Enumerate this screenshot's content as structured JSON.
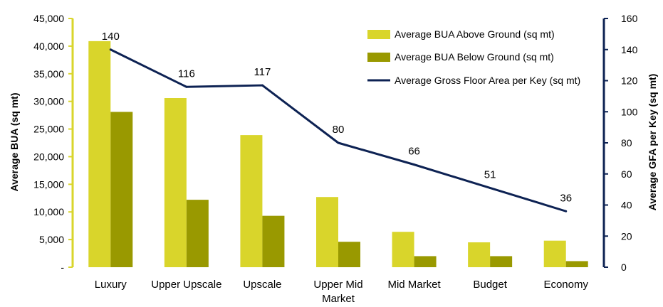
{
  "chart_data": {
    "type": "bar",
    "categories": [
      "Luxury",
      "Upper Upscale",
      "Upscale",
      "Upper Mid Market",
      "Mid Market",
      "Budget",
      "Economy"
    ],
    "series": [
      {
        "name": "Average BUA Above Ground (sq mt)",
        "type": "bar",
        "axis": "left",
        "color": "#d9d52b",
        "values": [
          40900,
          30600,
          23900,
          12700,
          6400,
          4500,
          4800
        ]
      },
      {
        "name": "Average BUA Below Ground (sq mt)",
        "type": "bar",
        "axis": "left",
        "color": "#999900",
        "values": [
          28100,
          12200,
          9300,
          4600,
          2000,
          2000,
          1100
        ]
      },
      {
        "name": "Average Gross Floor Area per Key (sq mt)",
        "type": "line",
        "axis": "right",
        "color": "#0d2253",
        "values": [
          140,
          116,
          117,
          80,
          66,
          51,
          36
        ]
      }
    ],
    "line_labels": [
      "140",
      "116",
      "117",
      "80",
      "66",
      "51",
      "36"
    ],
    "ylabel": "Average BUA (sq mt)",
    "y2label": "Average GFA per Key (sq mt)",
    "ylim": [
      0,
      45000
    ],
    "y2lim": [
      0,
      160
    ],
    "y_ticks": [
      "-",
      "5,000",
      "10,000",
      "15,000",
      "20,000",
      "25,000",
      "30,000",
      "35,000",
      "40,000",
      "45,000"
    ],
    "y2_ticks": [
      "0",
      "20",
      "40",
      "60",
      "80",
      "100",
      "120",
      "140",
      "160"
    ],
    "left_axis_color": "#d9d52b",
    "right_axis_color": "#0d2253",
    "legend_position": "top-right",
    "grid": false
  }
}
